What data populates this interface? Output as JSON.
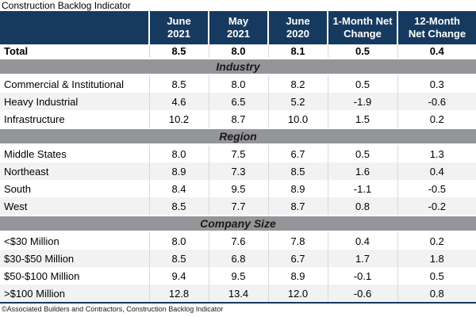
{
  "title": "Construction Backlog Indicator",
  "footer": "©Associated Builders and Contractors, Construction Backlog Indicator",
  "colors": {
    "header_bg": "#16395f",
    "header_text": "#ffffff",
    "section_bg": "#939598",
    "row_stripe": "#f2f2f2",
    "grid_line": "#d9d9d9",
    "bottom_border": "#16395f"
  },
  "chart_data": {
    "type": "table",
    "title": "Construction Backlog Indicator",
    "columns": [
      "",
      "June 2021",
      "May 2021",
      "June 2020",
      "1-Month Net Change",
      "12-Month Net Change"
    ],
    "sections": [
      "Industry",
      "Region",
      "Company Size"
    ],
    "rows": [
      {
        "label": "Total",
        "values": [
          8.5,
          8.0,
          8.1,
          0.5,
          0.4
        ]
      },
      {
        "label": "Commercial & Institutional",
        "values": [
          8.5,
          8.0,
          8.2,
          0.5,
          0.3
        ]
      },
      {
        "label": "Heavy Industrial",
        "values": [
          4.6,
          6.5,
          5.2,
          -1.9,
          -0.6
        ]
      },
      {
        "label": "Infrastructure",
        "values": [
          10.2,
          8.7,
          10.0,
          1.5,
          0.2
        ]
      },
      {
        "label": "Middle States",
        "values": [
          8.0,
          7.5,
          6.7,
          0.5,
          1.3
        ]
      },
      {
        "label": "Northeast",
        "values": [
          8.9,
          7.3,
          8.5,
          1.6,
          0.4
        ]
      },
      {
        "label": "South",
        "values": [
          8.4,
          9.5,
          8.9,
          -1.1,
          -0.5
        ]
      },
      {
        "label": "West",
        "values": [
          8.5,
          7.7,
          8.7,
          0.8,
          -0.2
        ]
      },
      {
        "label": "<$30 Million",
        "values": [
          8.0,
          7.6,
          7.8,
          0.4,
          0.2
        ]
      },
      {
        "label": "$30-$50 Million",
        "values": [
          8.5,
          6.8,
          6.7,
          1.7,
          1.8
        ]
      },
      {
        "label": "$50-$100 Million",
        "values": [
          9.4,
          9.5,
          8.9,
          -0.1,
          0.5
        ]
      },
      {
        "label": ">$100 Million",
        "values": [
          12.8,
          13.4,
          12.0,
          -0.6,
          0.8
        ]
      }
    ]
  },
  "header": {
    "columns": [
      {
        "line1": "",
        "line2": ""
      },
      {
        "line1": "June",
        "line2": "2021"
      },
      {
        "line1": "May",
        "line2": "2021"
      },
      {
        "line1": "June",
        "line2": "2020"
      },
      {
        "line1": "1-Month Net",
        "line2": "Change"
      },
      {
        "line1": "12-Month",
        "line2": "Net Change"
      }
    ]
  },
  "rows": [
    {
      "type": "total",
      "label": "Total",
      "values": [
        "8.5",
        "8.0",
        "8.1",
        "0.5",
        "0.4"
      ]
    },
    {
      "type": "section",
      "label": "Industry"
    },
    {
      "type": "data",
      "label": "Commercial & Institutional",
      "values": [
        "8.5",
        "8.0",
        "8.2",
        "0.5",
        "0.3"
      ]
    },
    {
      "type": "data",
      "label": "Heavy Industrial",
      "values": [
        "4.6",
        "6.5",
        "5.2",
        "-1.9",
        "-0.6"
      ]
    },
    {
      "type": "data",
      "label": "Infrastructure",
      "values": [
        "10.2",
        "8.7",
        "10.0",
        "1.5",
        "0.2"
      ]
    },
    {
      "type": "section",
      "label": "Region"
    },
    {
      "type": "data",
      "label": "Middle States",
      "values": [
        "8.0",
        "7.5",
        "6.7",
        "0.5",
        "1.3"
      ]
    },
    {
      "type": "data",
      "label": "Northeast",
      "values": [
        "8.9",
        "7.3",
        "8.5",
        "1.6",
        "0.4"
      ]
    },
    {
      "type": "data",
      "label": "South",
      "values": [
        "8.4",
        "9.5",
        "8.9",
        "-1.1",
        "-0.5"
      ]
    },
    {
      "type": "data",
      "label": "West",
      "values": [
        "8.5",
        "7.7",
        "8.7",
        "0.8",
        "-0.2"
      ]
    },
    {
      "type": "section",
      "label": "Company Size"
    },
    {
      "type": "data",
      "label": "<$30 Million",
      "values": [
        "8.0",
        "7.6",
        "7.8",
        "0.4",
        "0.2"
      ]
    },
    {
      "type": "data",
      "label": "$30-$50 Million",
      "values": [
        "8.5",
        "6.8",
        "6.7",
        "1.7",
        "1.8"
      ]
    },
    {
      "type": "data",
      "label": "$50-$100 Million",
      "values": [
        "9.4",
        "9.5",
        "8.9",
        "-0.1",
        "0.5"
      ]
    },
    {
      "type": "data",
      "label": ">$100 Million",
      "values": [
        "12.8",
        "13.4",
        "12.0",
        "-0.6",
        "0.8"
      ]
    }
  ]
}
